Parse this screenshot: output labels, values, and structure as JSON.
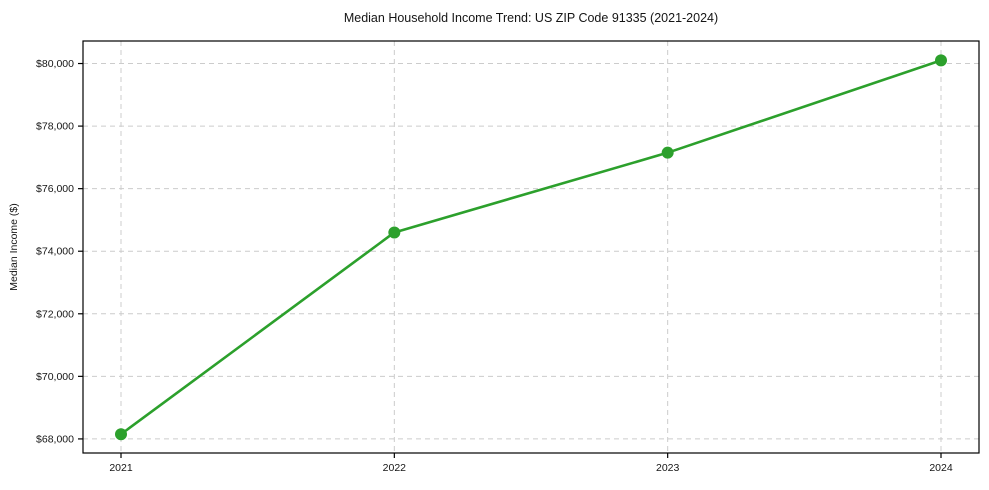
{
  "chart_data": {
    "type": "line",
    "title": "Median Household Income Trend: US ZIP Code 91335 (2021-2024)",
    "xlabel": "",
    "ylabel": "Median Income ($)",
    "categories": [
      "2021",
      "2022",
      "2023",
      "2024"
    ],
    "series": [
      {
        "name": "median-household-income",
        "values": [
          68150,
          74600,
          77150,
          80100
        ]
      }
    ],
    "ylim": [
      67550,
      80720
    ],
    "yticks": [
      68000,
      70000,
      72000,
      74000,
      76000,
      78000,
      80000
    ],
    "ytick_labels": [
      "$68,000",
      "$70,000",
      "$72,000",
      "$74,000",
      "$76,000",
      "$78,000",
      "$80,000"
    ],
    "grid": true,
    "grid_style": "dashed",
    "legend_position": "none",
    "colors": {
      "line": "#2ca02c",
      "marker": "#2ca02c",
      "grid": "#cccccc",
      "spine": "#000000",
      "text": "#151515",
      "background": "#ffffff"
    }
  }
}
